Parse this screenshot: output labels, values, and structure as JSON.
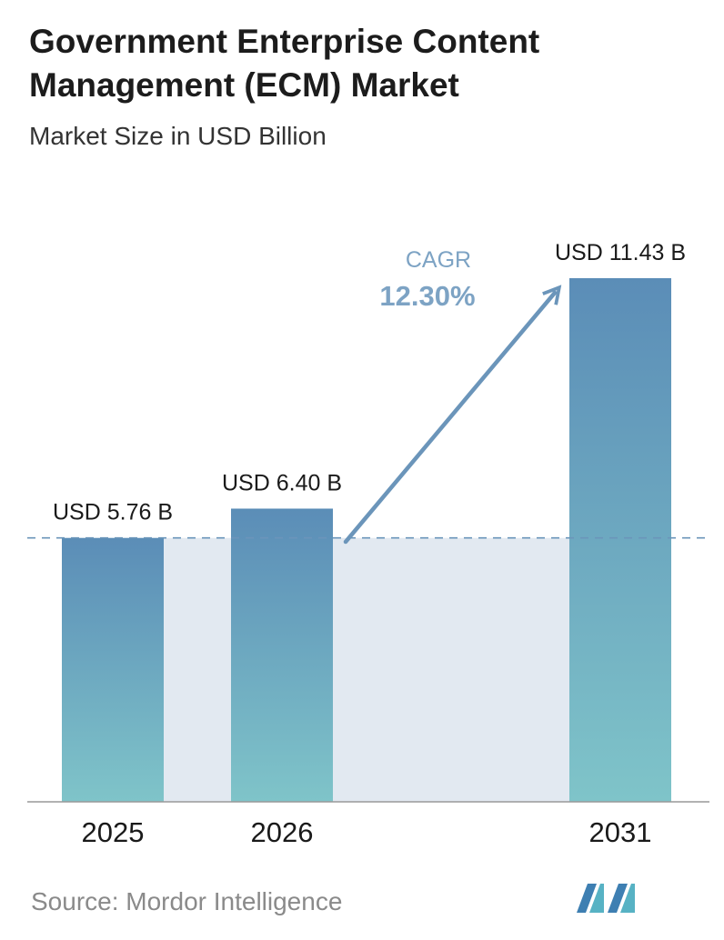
{
  "title": "Government Enterprise Content Management (ECM) Market",
  "subtitle": "Market Size in USD Billion",
  "source": "Source:  Mordor Intelligence",
  "cagr": {
    "label": "CAGR",
    "value": "12.30%"
  },
  "colors": {
    "bar_top": "#5b8db7",
    "bar_bottom": "#7fc4c9",
    "shade": "#e2e9f1",
    "arrow": "#6b95ba",
    "cagr_text": "#7da3c4",
    "axis": "#999999"
  },
  "chart_data": {
    "type": "bar",
    "categories": [
      "2025",
      "2026",
      "2031"
    ],
    "values": [
      5.76,
      6.4,
      11.43
    ],
    "value_labels": [
      "USD 5.76 B",
      "USD 6.40 B",
      "USD 11.43 B"
    ],
    "title": "Government Enterprise Content Management (ECM) Market",
    "subtitle": "Market Size in USD Billion",
    "ylim": [
      0,
      11.43
    ],
    "grid": false,
    "reference_line": 5.76
  }
}
